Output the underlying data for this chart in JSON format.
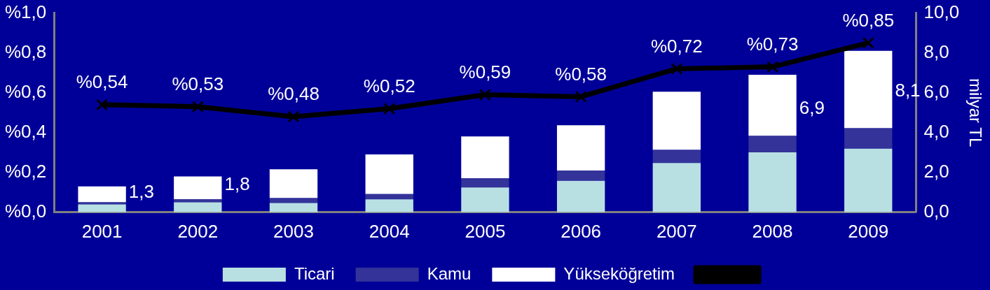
{
  "chart_data": {
    "type": "bar",
    "stacked": true,
    "categories": [
      "2001",
      "2002",
      "2003",
      "2004",
      "2005",
      "2006",
      "2007",
      "2008",
      "2009"
    ],
    "series": [
      {
        "name": "Ticari",
        "color": "#b8e0e3",
        "axis": "y2",
        "values": [
          0.4,
          0.5,
          0.47,
          0.65,
          1.25,
          1.58,
          2.47,
          3.01,
          3.19
        ]
      },
      {
        "name": "Kamu",
        "color": "#333399",
        "axis": "y2",
        "values": [
          0.1,
          0.15,
          0.24,
          0.26,
          0.46,
          0.52,
          0.66,
          0.82,
          1.03
        ]
      },
      {
        "name": "Yükseköğretim",
        "color": "#ffffff",
        "axis": "y2",
        "values": [
          0.8,
          1.15,
          1.45,
          1.99,
          2.1,
          2.27,
          2.92,
          3.07,
          3.88
        ]
      },
      {
        "type": "line",
        "color": "#000000",
        "marker": "cross",
        "values": [
          0.54,
          0.53,
          0.48,
          0.52,
          0.59,
          0.58,
          0.72,
          0.73,
          0.85
        ],
        "value_labels": [
          "%0,54",
          "%0,53",
          "%0,48",
          "%0,52",
          "%0,59",
          "%0,58",
          "%0,72",
          "%0,73",
          "%0,85"
        ]
      }
    ],
    "totals": [
      "1,3",
      "1,8",
      null,
      null,
      null,
      null,
      null,
      "6,9",
      "8,1"
    ],
    "ylim": [
      0,
      1
    ],
    "yticks": [
      {
        "value": 0,
        "label": "%0,0"
      },
      {
        "value": 0.2,
        "label": "%0,2"
      },
      {
        "value": 0.4,
        "label": "%0,4"
      },
      {
        "value": 0.6,
        "label": "%0,6"
      },
      {
        "value": 0.8,
        "label": "%0,8"
      },
      {
        "value": 1,
        "label": "%1,0"
      }
    ],
    "y2lim": [
      0,
      10
    ],
    "y2ticks": [
      {
        "value": 0,
        "label": "0,0"
      },
      {
        "value": 2,
        "label": "2,0"
      },
      {
        "value": 4,
        "label": "4,0"
      },
      {
        "value": 6,
        "label": "6,0"
      },
      {
        "value": 8,
        "label": "8,0"
      },
      {
        "value": 10,
        "label": "10,0"
      }
    ],
    "y2label": "milyar TL",
    "grid": false,
    "legend": "bottom"
  }
}
